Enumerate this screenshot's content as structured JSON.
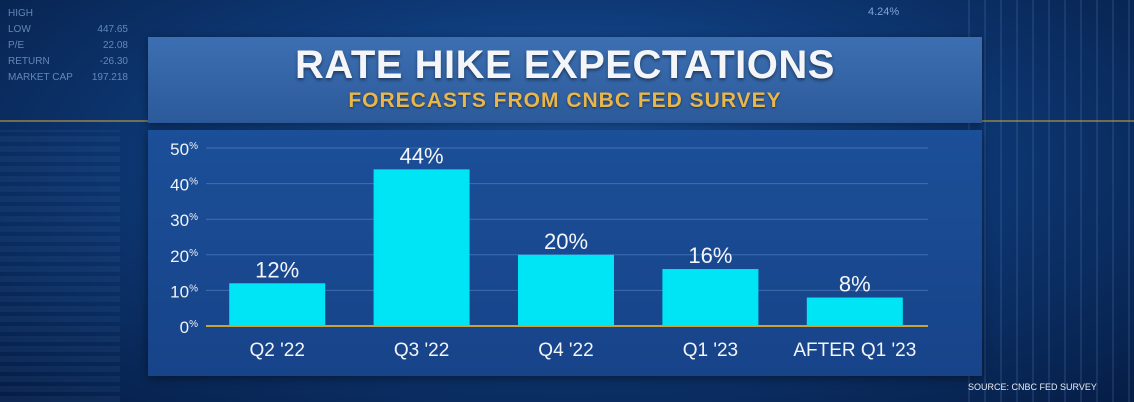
{
  "background": {
    "ticker": [
      {
        "label": "HIGH",
        "value": ""
      },
      {
        "label": "LOW",
        "value": "447.65"
      },
      {
        "label": "P/E",
        "value": "22.08"
      },
      {
        "label": "RETURN",
        "value": "-26.30"
      },
      {
        "label": "MARKET CAP",
        "value": "197.218"
      }
    ],
    "corner_value": "4.24%"
  },
  "header": {
    "title": "RATE HIKE EXPECTATIONS",
    "subtitle": "FORECASTS FROM CNBC FED SURVEY"
  },
  "footer": {
    "source": "SOURCE: CNBC FED SURVEY"
  },
  "colors": {
    "bar": "#00e5f5",
    "title": "#f3f5f8",
    "subtitle": "#e8b64a",
    "baseline": "#c9a23a"
  },
  "chart_data": {
    "type": "bar",
    "title": "RATE HIKE EXPECTATIONS",
    "subtitle": "FORECASTS FROM CNBC FED SURVEY",
    "categories": [
      "Q2 '22",
      "Q3 '22",
      "Q4 '22",
      "Q1 '23",
      "AFTER Q1 '23"
    ],
    "values": [
      12,
      44,
      20,
      16,
      8
    ],
    "value_labels": [
      "12%",
      "44%",
      "20%",
      "16%",
      "8%"
    ],
    "y_ticks": [
      0,
      10,
      20,
      30,
      40,
      50
    ],
    "y_tick_unit": "%",
    "ylim": [
      0,
      50
    ],
    "xlabel": "",
    "ylabel": "",
    "grid": true,
    "legend": "none"
  }
}
